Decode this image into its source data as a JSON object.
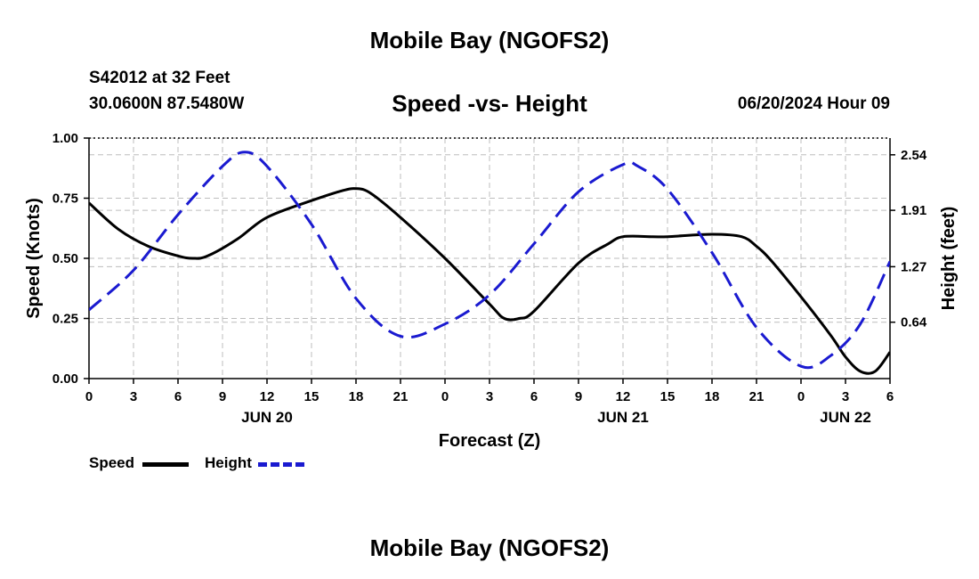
{
  "header": {
    "title": "Mobile Bay (NGOFS2)",
    "station": "S42012 at 32 Feet",
    "coordinates": "30.0600N  87.5480W",
    "chart_title": "Speed -vs- Height",
    "datetime": "06/20/2024 Hour 09"
  },
  "footer": {
    "title": "Mobile Bay (NGOFS2)"
  },
  "legend": {
    "speed": "Speed",
    "height": "Height"
  },
  "colors": {
    "speed": "#000000",
    "height": "#1a1ad0",
    "grid": "#bdbdbd"
  },
  "chart_data": {
    "type": "line",
    "title": "Speed -vs- Height",
    "xlabel": "Forecast (Z)",
    "ylabel": "Speed (Knots)",
    "y2label": "Height (feet)",
    "x_range_hours": [
      0,
      54
    ],
    "x_ticks": [
      "0",
      "3",
      "6",
      "9",
      "12",
      "15",
      "18",
      "21",
      "0",
      "3",
      "6",
      "9",
      "12",
      "15",
      "18",
      "21",
      "0",
      "3",
      "6"
    ],
    "date_labels": [
      {
        "label": "JUN 20",
        "hour": 12
      },
      {
        "label": "JUN 21",
        "hour": 36
      },
      {
        "label": "JUN 22",
        "hour": 51
      }
    ],
    "y_left": {
      "range": [
        0,
        1.0
      ],
      "ticks": [
        "0.00",
        "0.25",
        "0.50",
        "0.75",
        "1.00"
      ],
      "tick_values": [
        0,
        0.25,
        0.5,
        0.75,
        1.0
      ]
    },
    "y_right": {
      "range": [
        0,
        2.73
      ],
      "ticks": [
        "0.64",
        "1.27",
        "1.91",
        "2.54"
      ],
      "tick_values": [
        0.64,
        1.27,
        1.91,
        2.54
      ]
    },
    "grid": true,
    "legend_position": "bottom-left",
    "series": [
      {
        "name": "Speed",
        "axis": "left",
        "style": "solid",
        "x": [
          0,
          2,
          4,
          6,
          7,
          8,
          10,
          12,
          15,
          17,
          18,
          19,
          21,
          24,
          27,
          28,
          29,
          30,
          33,
          35,
          36,
          38,
          39,
          42,
          44,
          45,
          46,
          48,
          50,
          51,
          52,
          53,
          54
        ],
        "values": [
          0.73,
          0.62,
          0.55,
          0.51,
          0.5,
          0.51,
          0.58,
          0.67,
          0.74,
          0.78,
          0.79,
          0.77,
          0.67,
          0.5,
          0.31,
          0.25,
          0.25,
          0.28,
          0.48,
          0.56,
          0.59,
          0.59,
          0.59,
          0.6,
          0.59,
          0.55,
          0.49,
          0.34,
          0.18,
          0.09,
          0.03,
          0.03,
          0.11
        ]
      },
      {
        "name": "Height",
        "axis": "right",
        "style": "dashed",
        "x": [
          0,
          3,
          6,
          9,
          10.5,
          12,
          15,
          18,
          21,
          24,
          27,
          30,
          33,
          36,
          37,
          39,
          42,
          45,
          48,
          50,
          52,
          54
        ],
        "values": [
          0.78,
          1.23,
          1.86,
          2.41,
          2.57,
          2.41,
          1.75,
          0.91,
          0.48,
          0.62,
          0.95,
          1.53,
          2.12,
          2.43,
          2.41,
          2.15,
          1.43,
          0.58,
          0.14,
          0.26,
          0.62,
          1.33
        ]
      }
    ]
  }
}
